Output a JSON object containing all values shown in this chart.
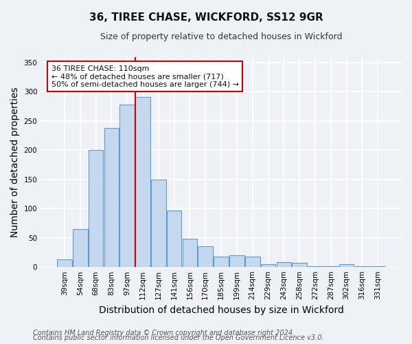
{
  "title": "36, TIREE CHASE, WICKFORD, SS12 9GR",
  "subtitle": "Size of property relative to detached houses in Wickford",
  "xlabel": "Distribution of detached houses by size in Wickford",
  "ylabel": "Number of detached properties",
  "bar_labels": [
    "39sqm",
    "54sqm",
    "68sqm",
    "83sqm",
    "97sqm",
    "112sqm",
    "127sqm",
    "141sqm",
    "156sqm",
    "170sqm",
    "185sqm",
    "199sqm",
    "214sqm",
    "229sqm",
    "243sqm",
    "258sqm",
    "272sqm",
    "287sqm",
    "302sqm",
    "316sqm",
    "331sqm"
  ],
  "bar_values": [
    13,
    65,
    200,
    238,
    278,
    291,
    150,
    97,
    48,
    35,
    18,
    20,
    18,
    5,
    8,
    7,
    1,
    1,
    5,
    1,
    1
  ],
  "bar_color": "#c5d8ed",
  "bar_edge_color": "#5b9bd5",
  "vline_x_index": 5,
  "vline_color": "#cc0000",
  "ylim": [
    0,
    360
  ],
  "yticks": [
    0,
    50,
    100,
    150,
    200,
    250,
    300,
    350
  ],
  "annotation_line1": "36 TIREE CHASE: 110sqm",
  "annotation_line2": "← 48% of detached houses are smaller (717)",
  "annotation_line3": "50% of semi-detached houses are larger (744) →",
  "annotation_box_color": "#cc0000",
  "footer1": "Contains HM Land Registry data © Crown copyright and database right 2024.",
  "footer2": "Contains public sector information licensed under the Open Government Licence v3.0.",
  "bg_color": "#eef2f7",
  "grid_color": "#ffffff",
  "title_fontsize": 11,
  "subtitle_fontsize": 9,
  "axis_label_fontsize": 10,
  "tick_fontsize": 7.5,
  "footer_fontsize": 7
}
